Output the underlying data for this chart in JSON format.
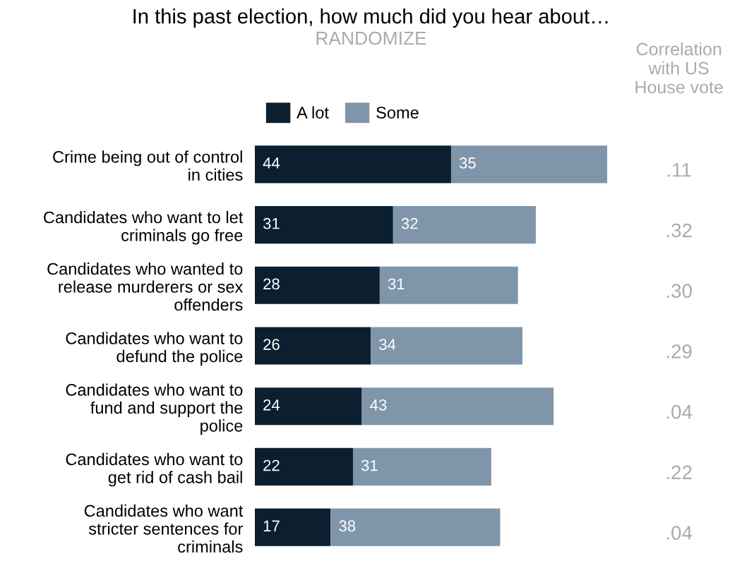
{
  "chart_data": {
    "type": "bar",
    "orientation": "horizontal",
    "stacked": true,
    "data_labels": true,
    "legend": "top left",
    "grid": false,
    "title": "In this past election, how much did you hear about…",
    "subtitle": "RANDOMIZE",
    "categories": [
      "Crime being out of control\nin cities",
      "Candidates who want to let\ncriminals go free",
      "Candidates who wanted to\nrelease murderers or sex\noffenders",
      "Candidates who want to\ndefund the police",
      "Candidates who want to\nfund and support the\npolice",
      "Candidates who want to\nget rid of cash bail",
      "Candidates who want\nstricter sentences for\ncriminals"
    ],
    "series": [
      {
        "name": "A lot",
        "color": "#0b1f2e",
        "values": [
          44,
          31,
          28,
          26,
          24,
          22,
          17
        ]
      },
      {
        "name": "Some",
        "color": "#7f96aa",
        "values": [
          35,
          32,
          31,
          34,
          43,
          31,
          38
        ]
      }
    ],
    "annotations": [
      "Correlation\nwith US\nHouse vote",
      ".11",
      ".32",
      ".30",
      ".29",
      ".04",
      ".22",
      ".04"
    ]
  }
}
